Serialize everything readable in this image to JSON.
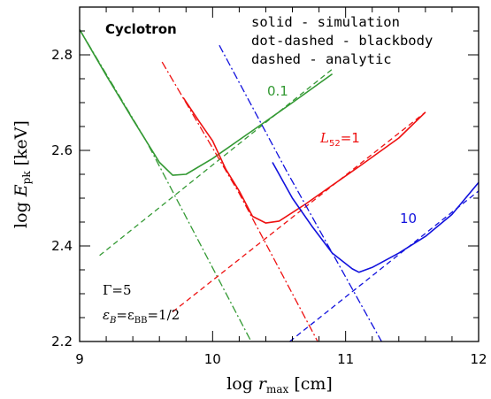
{
  "chart_data": {
    "type": "line",
    "xlabel_prefix": "log ",
    "xlabel_var": "r",
    "xlabel_sub": "max",
    "xlabel_unit": " [cm]",
    "ylabel_prefix": "log ",
    "ylabel_var": "E",
    "ylabel_sub": "pk",
    "ylabel_unit": " [keV]",
    "xlim": [
      9,
      12
    ],
    "ylim": [
      2.2,
      2.9
    ],
    "x_ticks": [
      "9",
      "10",
      "11",
      "12"
    ],
    "y_ticks": [
      "2.2",
      "2.4",
      "2.6",
      "2.8"
    ],
    "title": "Cyclotron",
    "legend_lines": [
      "solid - simulation",
      "dot-dashed - blackbody",
      "dashed - analytic"
    ],
    "param_gamma": "Γ=5",
    "param_eps": "ε",
    "param_eps_sub_b": "B",
    "param_eps_mid": "=ε",
    "param_eps_sub_bb": "BB",
    "param_eps_end": "=1/2",
    "colors": {
      "green": "#339933",
      "red": "#ee1111",
      "blue": "#1111dd"
    },
    "series": [
      {
        "curve_label": "0.1",
        "color": "green",
        "simulation": [
          [
            9.0,
            2.853
          ],
          [
            9.2,
            2.757
          ],
          [
            9.4,
            2.665
          ],
          [
            9.6,
            2.575
          ],
          [
            9.7,
            2.548
          ],
          [
            9.8,
            2.55
          ],
          [
            10.0,
            2.583
          ],
          [
            10.2,
            2.622
          ],
          [
            10.4,
            2.661
          ],
          [
            10.6,
            2.7
          ],
          [
            10.9,
            2.76
          ]
        ],
        "blackbody": [
          [
            9.0,
            2.853
          ],
          [
            9.5,
            2.62
          ],
          [
            10.29,
            2.2
          ]
        ],
        "analytic": [
          [
            9.15,
            2.38
          ],
          [
            10.9,
            2.77
          ]
        ]
      },
      {
        "curve_label_prefix": "L",
        "curve_label_sub": "52",
        "curve_label_suffix": "=1",
        "color": "red",
        "simulation": [
          [
            9.78,
            2.71
          ],
          [
            9.9,
            2.66
          ],
          [
            10.0,
            2.62
          ],
          [
            10.1,
            2.56
          ],
          [
            10.2,
            2.515
          ],
          [
            10.3,
            2.462
          ],
          [
            10.4,
            2.448
          ],
          [
            10.5,
            2.452
          ],
          [
            10.7,
            2.488
          ],
          [
            10.9,
            2.527
          ],
          [
            11.1,
            2.566
          ],
          [
            11.4,
            2.626
          ],
          [
            11.6,
            2.68
          ]
        ],
        "blackbody": [
          [
            9.62,
            2.785
          ],
          [
            10.2,
            2.51
          ],
          [
            10.79,
            2.2
          ]
        ],
        "analytic": [
          [
            9.7,
            2.262
          ],
          [
            11.6,
            2.68
          ]
        ]
      },
      {
        "curve_label": "10",
        "color": "blue",
        "simulation": [
          [
            10.45,
            2.575
          ],
          [
            10.6,
            2.5
          ],
          [
            10.75,
            2.44
          ],
          [
            10.9,
            2.385
          ],
          [
            11.05,
            2.352
          ],
          [
            11.1,
            2.345
          ],
          [
            11.2,
            2.355
          ],
          [
            11.4,
            2.385
          ],
          [
            11.6,
            2.42
          ],
          [
            11.8,
            2.466
          ],
          [
            12.0,
            2.533
          ]
        ],
        "blackbody": [
          [
            10.05,
            2.82
          ],
          [
            10.55,
            2.56
          ],
          [
            11.27,
            2.2
          ]
        ],
        "analytic": [
          [
            10.58,
            2.2
          ],
          [
            12.0,
            2.515
          ]
        ]
      }
    ]
  }
}
